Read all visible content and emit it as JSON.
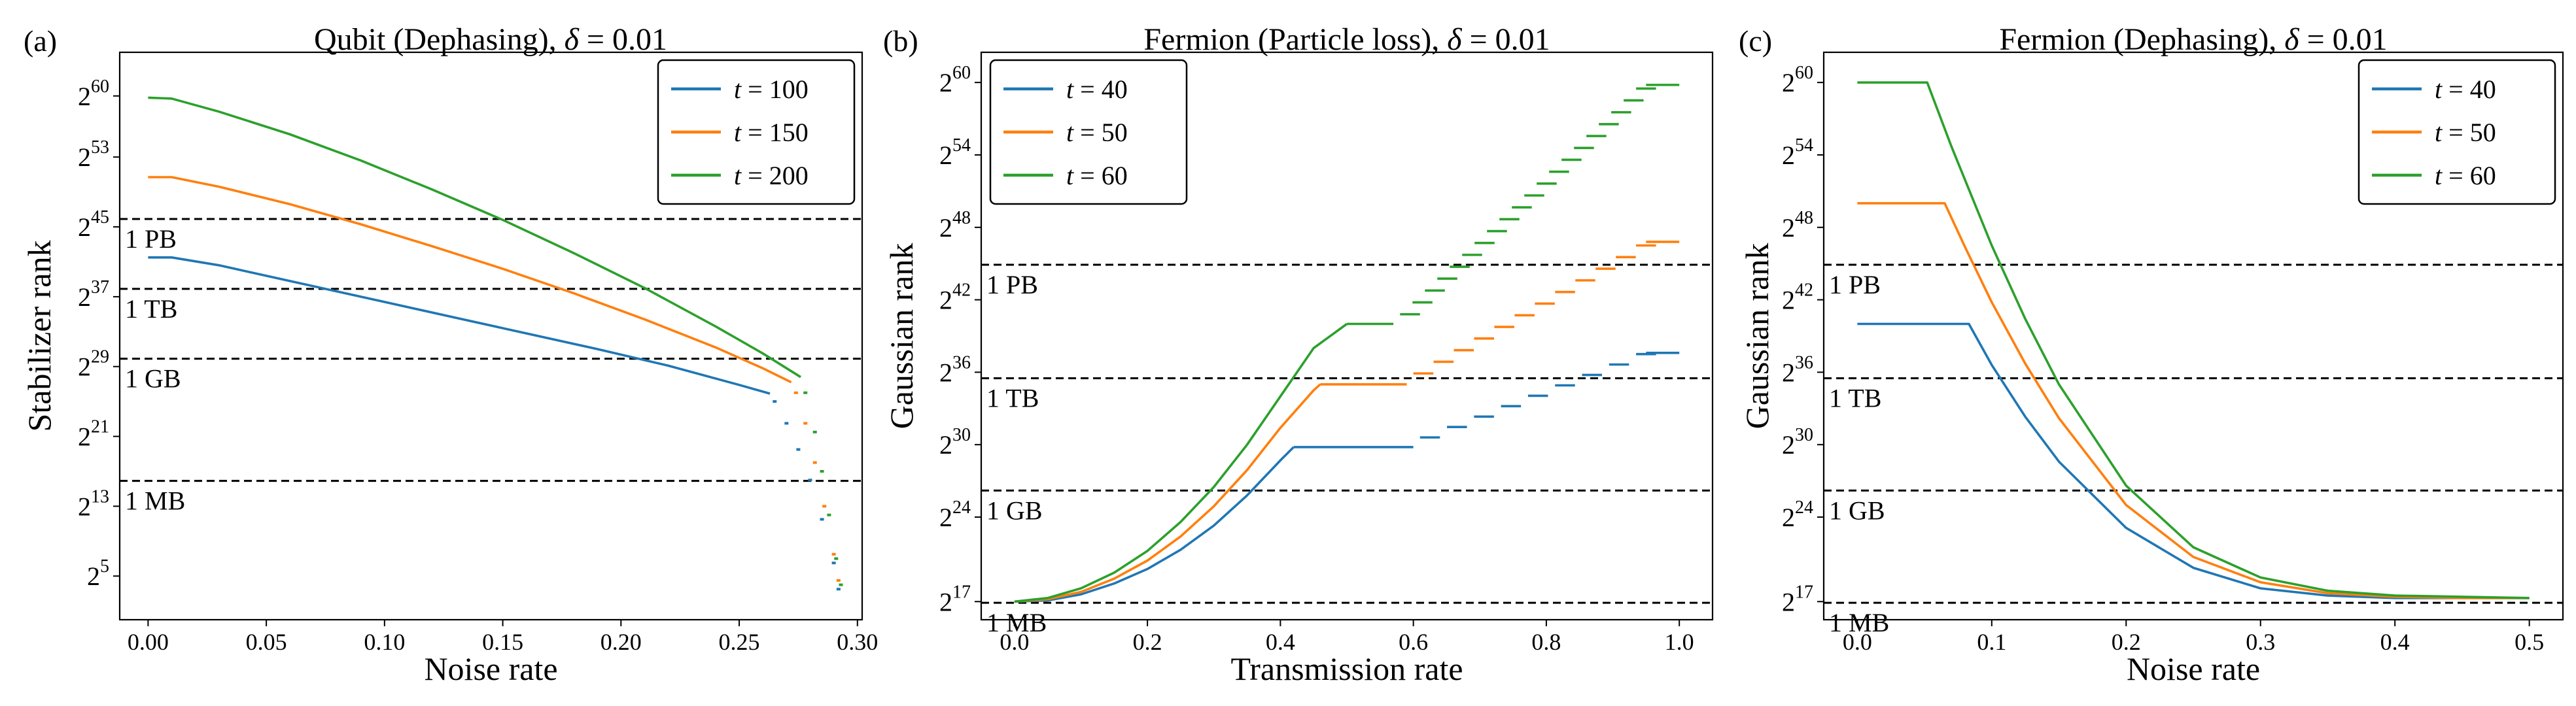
{
  "figure": {
    "colors": {
      "blue": "#1f77b4",
      "orange": "#ff7f0e",
      "green": "#2ca02c"
    }
  },
  "chart_data": [
    {
      "panel_label": "(a)",
      "type": "line",
      "title": "Qubit (Dephasing), δ = 0.01",
      "title_parts": {
        "prefix": "Qubit (Dephasing), ",
        "symbol": "δ",
        "suffix": " = 0.01"
      },
      "xlabel": "Noise rate",
      "ylabel": "Stabilizer rank",
      "xlim": [
        -0.012,
        0.302
      ],
      "ylim_log2": [
        0,
        65
      ],
      "xticks": [
        {
          "v": 0.0,
          "label": "0.00"
        },
        {
          "v": 0.05,
          "label": "0.05"
        },
        {
          "v": 0.1,
          "label": "0.10"
        },
        {
          "v": 0.15,
          "label": "0.15"
        },
        {
          "v": 0.2,
          "label": "0.20"
        },
        {
          "v": 0.25,
          "label": "0.25"
        },
        {
          "v": 0.3,
          "label": "0.30"
        }
      ],
      "yticks": [
        {
          "v": 5,
          "base": "2",
          "exp": "5"
        },
        {
          "v": 13,
          "base": "2",
          "exp": "13"
        },
        {
          "v": 21,
          "base": "2",
          "exp": "21"
        },
        {
          "v": 29,
          "base": "2",
          "exp": "29"
        },
        {
          "v": 37,
          "base": "2",
          "exp": "37"
        },
        {
          "v": 45,
          "base": "2",
          "exp": "45"
        },
        {
          "v": 53,
          "base": "2",
          "exp": "53"
        },
        {
          "v": 60,
          "base": "2",
          "exp": "60"
        }
      ],
      "reference_lines": [
        {
          "y": 15.9,
          "label": "1 MB"
        },
        {
          "y": 29.9,
          "label": "1 GB"
        },
        {
          "y": 37.9,
          "label": "1 TB"
        },
        {
          "y": 45.9,
          "label": "1 PB"
        }
      ],
      "legend": {
        "position": "top-right",
        "symbol": "t",
        "entries": [
          "100",
          "150",
          "200"
        ]
      },
      "series": [
        {
          "name": "t = 100",
          "color": "blue",
          "x": [
            0.0,
            0.01,
            0.03,
            0.05,
            0.08,
            0.1,
            0.13,
            0.16,
            0.19,
            0.22,
            0.25,
            0.263
          ],
          "y": [
            41.5,
            41.5,
            40.6,
            39.4,
            37.6,
            36.4,
            34.6,
            32.8,
            31.0,
            29.1,
            26.9,
            25.9
          ],
          "tail_x": [
            0.265,
            0.27,
            0.275,
            0.28,
            0.285,
            0.29,
            0.292
          ],
          "tail_y": [
            25.0,
            22.5,
            19.5,
            16.0,
            11.5,
            6.5,
            3.5
          ]
        },
        {
          "name": "t = 150",
          "color": "orange",
          "x": [
            0.0,
            0.01,
            0.03,
            0.06,
            0.09,
            0.12,
            0.15,
            0.18,
            0.21,
            0.24,
            0.26,
            0.272
          ],
          "y": [
            50.7,
            50.7,
            49.6,
            47.6,
            45.3,
            42.8,
            40.2,
            37.4,
            34.4,
            31.2,
            28.8,
            27.2
          ],
          "tail_x": [
            0.274,
            0.278,
            0.282,
            0.286,
            0.29,
            0.292
          ],
          "tail_y": [
            26.0,
            22.5,
            18.0,
            13.0,
            7.5,
            4.5
          ]
        },
        {
          "name": "t = 200",
          "color": "green",
          "x": [
            0.0,
            0.01,
            0.03,
            0.06,
            0.09,
            0.12,
            0.15,
            0.18,
            0.21,
            0.24,
            0.26,
            0.276
          ],
          "y": [
            59.8,
            59.7,
            58.2,
            55.6,
            52.6,
            49.3,
            45.8,
            42.0,
            38.0,
            33.6,
            30.5,
            27.8
          ],
          "tail_x": [
            0.278,
            0.282,
            0.285,
            0.288,
            0.291,
            0.293
          ],
          "tail_y": [
            26.0,
            21.5,
            17.0,
            12.0,
            7.0,
            4.0
          ]
        }
      ]
    },
    {
      "panel_label": "(b)",
      "type": "line",
      "title": "Fermion (Particle loss), δ = 0.01",
      "title_parts": {
        "prefix": "Fermion (Particle loss), ",
        "symbol": "δ",
        "suffix": " = 0.01"
      },
      "xlabel": "Transmission rate",
      "ylabel": "Gaussian rank",
      "xlim": [
        -0.05,
        1.05
      ],
      "ylim_log2": [
        15.5,
        62.5
      ],
      "xticks": [
        {
          "v": 0.0,
          "label": "0.0"
        },
        {
          "v": 0.2,
          "label": "0.2"
        },
        {
          "v": 0.4,
          "label": "0.4"
        },
        {
          "v": 0.6,
          "label": "0.6"
        },
        {
          "v": 0.8,
          "label": "0.8"
        },
        {
          "v": 1.0,
          "label": "1.0"
        }
      ],
      "yticks": [
        {
          "v": 17,
          "base": "2",
          "exp": "17"
        },
        {
          "v": 24,
          "base": "2",
          "exp": "24"
        },
        {
          "v": 30,
          "base": "2",
          "exp": "30"
        },
        {
          "v": 36,
          "base": "2",
          "exp": "36"
        },
        {
          "v": 42,
          "base": "2",
          "exp": "42"
        },
        {
          "v": 48,
          "base": "2",
          "exp": "48"
        },
        {
          "v": 54,
          "base": "2",
          "exp": "54"
        },
        {
          "v": 60,
          "base": "2",
          "exp": "60"
        }
      ],
      "reference_lines": [
        {
          "y": 16.9,
          "label": "1 MB"
        },
        {
          "y": 26.2,
          "label": "1 GB"
        },
        {
          "y": 35.5,
          "label": "1 TB"
        },
        {
          "y": 44.9,
          "label": "1 PB"
        }
      ],
      "legend": {
        "position": "top-left",
        "symbol": "t",
        "entries": [
          "40",
          "50",
          "60"
        ]
      },
      "series": [
        {
          "name": "t = 40",
          "color": "blue",
          "ramp_x": [
            0.0,
            0.05,
            0.1,
            0.15,
            0.2,
            0.25,
            0.3,
            0.35,
            0.4,
            0.42
          ],
          "ramp_y": [
            17.0,
            17.1,
            17.6,
            18.5,
            19.7,
            21.3,
            23.3,
            25.8,
            28.7,
            29.8
          ],
          "flat_x": [
            0.42,
            0.6
          ],
          "flat_y": [
            29.8,
            29.8
          ],
          "steps": {
            "start": 0.61,
            "end": 0.985,
            "width": 0.05,
            "y_start": 30.6,
            "y_end": 37.5,
            "count": 9
          },
          "end_y": 37.6
        },
        {
          "name": "t = 50",
          "color": "orange",
          "ramp_x": [
            0.0,
            0.05,
            0.1,
            0.15,
            0.2,
            0.25,
            0.3,
            0.35,
            0.4,
            0.45,
            0.46
          ],
          "ramp_y": [
            17.0,
            17.2,
            17.8,
            18.9,
            20.4,
            22.4,
            24.9,
            27.9,
            31.4,
            34.5,
            35.0
          ],
          "flat_x": [
            0.46,
            0.59
          ],
          "flat_y": [
            35.0,
            35.0
          ],
          "steps": {
            "start": 0.6,
            "end": 0.985,
            "width": 0.05,
            "y_start": 35.9,
            "y_end": 46.5,
            "count": 12
          },
          "end_y": 46.8
        },
        {
          "name": "t = 60",
          "color": "green",
          "ramp_x": [
            0.0,
            0.05,
            0.1,
            0.15,
            0.2,
            0.25,
            0.3,
            0.35,
            0.4,
            0.45,
            0.5
          ],
          "ramp_y": [
            17.0,
            17.3,
            18.1,
            19.4,
            21.2,
            23.6,
            26.5,
            30.0,
            34.0,
            38.0,
            40.0
          ],
          "flat_x": [
            0.5,
            0.57
          ],
          "flat_y": [
            40.0,
            40.0
          ],
          "steps": {
            "start": 0.58,
            "end": 0.985,
            "width": 0.05,
            "y_start": 40.8,
            "y_end": 59.5,
            "count": 20
          },
          "end_y": 59.8
        }
      ]
    },
    {
      "panel_label": "(c)",
      "type": "line",
      "title": "Fermion (Dephasing), δ = 0.01",
      "title_parts": {
        "prefix": "Fermion (Dephasing), ",
        "symbol": "δ",
        "suffix": " = 0.01"
      },
      "xlabel": "Noise rate",
      "ylabel": "Gaussian rank",
      "xlim": [
        -0.025,
        0.525
      ],
      "ylim_log2": [
        15.5,
        62.5
      ],
      "xticks": [
        {
          "v": 0.0,
          "label": "0.0"
        },
        {
          "v": 0.1,
          "label": "0.1"
        },
        {
          "v": 0.2,
          "label": "0.2"
        },
        {
          "v": 0.3,
          "label": "0.3"
        },
        {
          "v": 0.4,
          "label": "0.4"
        },
        {
          "v": 0.5,
          "label": "0.5"
        }
      ],
      "yticks": [
        {
          "v": 17,
          "base": "2",
          "exp": "17"
        },
        {
          "v": 24,
          "base": "2",
          "exp": "24"
        },
        {
          "v": 30,
          "base": "2",
          "exp": "30"
        },
        {
          "v": 36,
          "base": "2",
          "exp": "36"
        },
        {
          "v": 42,
          "base": "2",
          "exp": "42"
        },
        {
          "v": 48,
          "base": "2",
          "exp": "48"
        },
        {
          "v": 54,
          "base": "2",
          "exp": "54"
        },
        {
          "v": 60,
          "base": "2",
          "exp": "60"
        }
      ],
      "reference_lines": [
        {
          "y": 16.9,
          "label": "1 MB"
        },
        {
          "y": 26.2,
          "label": "1 GB"
        },
        {
          "y": 35.5,
          "label": "1 TB"
        },
        {
          "y": 44.9,
          "label": "1 PB"
        }
      ],
      "legend": {
        "position": "top-right",
        "symbol": "t",
        "entries": [
          "40",
          "50",
          "60"
        ]
      },
      "series": [
        {
          "name": "t = 40",
          "color": "blue",
          "x": [
            0.0,
            0.083,
            0.1,
            0.125,
            0.15,
            0.2,
            0.25,
            0.3,
            0.35,
            0.4,
            0.45,
            0.5
          ],
          "y": [
            40.0,
            40.0,
            36.6,
            32.3,
            28.6,
            23.1,
            19.8,
            18.1,
            17.5,
            17.3,
            17.3,
            17.3
          ]
        },
        {
          "name": "t = 50",
          "color": "orange",
          "x": [
            0.0,
            0.065,
            0.08,
            0.1,
            0.125,
            0.15,
            0.2,
            0.25,
            0.3,
            0.35,
            0.4,
            0.45,
            0.5
          ],
          "y": [
            50.0,
            50.0,
            46.4,
            41.8,
            36.7,
            32.2,
            25.0,
            20.7,
            18.6,
            17.7,
            17.4,
            17.3,
            17.3
          ]
        },
        {
          "name": "t = 60",
          "color": "green",
          "x": [
            0.0,
            0.052,
            0.07,
            0.1,
            0.125,
            0.15,
            0.2,
            0.25,
            0.3,
            0.35,
            0.4,
            0.45,
            0.5
          ],
          "y": [
            60.0,
            60.0,
            54.7,
            46.5,
            40.4,
            35.0,
            26.6,
            21.5,
            19.0,
            17.9,
            17.5,
            17.4,
            17.3
          ]
        }
      ]
    }
  ]
}
